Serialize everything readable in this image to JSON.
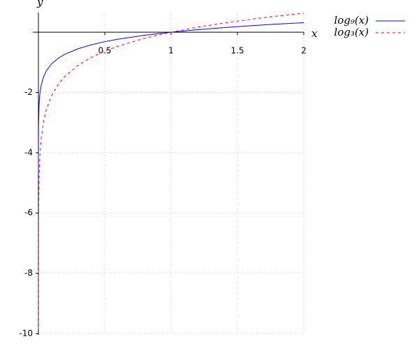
{
  "chart_data": {
    "type": "line",
    "x_label": "x",
    "y_label": "y",
    "x": [
      2e-05,
      0.0001,
      0.001,
      0.005,
      0.01,
      0.02,
      0.04,
      0.06,
      0.1,
      0.15,
      0.2,
      0.3,
      0.4,
      0.5,
      0.6,
      0.8,
      1,
      1.2,
      1.5,
      1.75,
      2
    ],
    "series": [
      {
        "name": "log₉(x)",
        "color": "#0000ff",
        "style": "solid",
        "values": [
          -4.924,
          -4.192,
          -3.144,
          -2.411,
          -2.096,
          -1.78,
          -1.465,
          -1.28,
          -1.048,
          -0.863,
          -0.732,
          -0.548,
          -0.417,
          -0.315,
          -0.232,
          -0.102,
          0,
          0.083,
          0.185,
          0.255,
          0.315
        ]
      },
      {
        "name": "log₃(x)",
        "color": "#ff0000",
        "style": "dashed",
        "values": [
          -9.849,
          -8.384,
          -6.288,
          -4.823,
          -4.192,
          -3.561,
          -2.93,
          -2.561,
          -2.096,
          -1.727,
          -1.465,
          -1.096,
          -0.834,
          -0.631,
          -0.465,
          -0.203,
          0,
          0.166,
          0.369,
          0.509,
          0.631
        ]
      }
    ],
    "xlim": [
      0,
      2
    ],
    "ylim": [
      -10,
      0.65
    ],
    "xticks": [
      0.5,
      1,
      1.5,
      2
    ],
    "yticks": [
      -2,
      -4,
      -6,
      -8,
      -10
    ],
    "grid": true,
    "legend": "top-right"
  }
}
